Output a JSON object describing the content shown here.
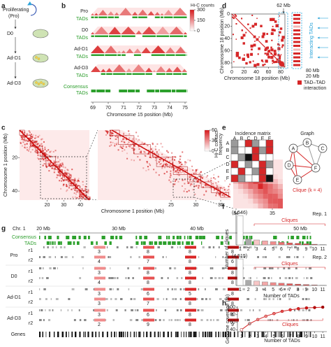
{
  "panel_labels": [
    "a",
    "b",
    "c",
    "d",
    "e",
    "f",
    "g",
    "h"
  ],
  "a": {
    "proliferating": [
      "Proliferating",
      "(Pro)"
    ],
    "stages": [
      "D0",
      "Ad-D1",
      "Ad-D3"
    ]
  },
  "b": {
    "tracks": [
      "Pro",
      "TADs",
      "D0",
      "TADs",
      "Ad-D1",
      "TADs",
      "Ad-D3",
      "TADs"
    ],
    "consensus": [
      "Consensus",
      "TADs"
    ],
    "colorbar_title": "Hi-C counts",
    "colorbar_ticks": [
      300,
      150,
      0
    ],
    "x_ticks": [
      69,
      70,
      71,
      72,
      73,
      74,
      75
    ],
    "x_label": "Chromosome 15 position (Mb)"
  },
  "c": {
    "y_label": "Chromosome 1 position (Mb)",
    "y_ticks": [
      20,
      40
    ],
    "x_ticks_left": [
      20,
      30,
      40
    ],
    "x_ticks_zoom": [
      25,
      30,
      35
    ],
    "x_ticks_inset": [
      34,
      35
    ],
    "x_label": "Chromosome 1 position (Mb)",
    "colorbar_title": [
      "Hi-C contact",
      "frequency"
    ],
    "colorbar_ticks": [
      60,
      30,
      0
    ]
  },
  "d": {
    "marker": "62 Mb",
    "ticks": [
      0,
      20,
      40,
      60,
      80
    ],
    "x_label": "Chromosome 18 position (Mb)",
    "y_label": "Chromosome 18 position (Mb)",
    "side_label": "Interacting TADs",
    "side_labels": [
      "80 Mb",
      "20 Mb"
    ],
    "legend": [
      "TAD–TAD",
      "interaction"
    ]
  },
  "e": {
    "matrix_title": "Incidence matrix",
    "graph_title": "Graph",
    "columns": [
      "A",
      "B",
      "C",
      "D",
      "E",
      "F"
    ],
    "rows": [
      "A",
      "B",
      "C",
      "D",
      "E",
      "F"
    ],
    "nodes": [
      "A",
      "B",
      "C",
      "D",
      "E",
      "F"
    ],
    "clique_label": "Clique (k = 4)"
  },
  "g": {
    "chromosome": "Chr. 1",
    "positions": [
      "20 Mb",
      "30 Mb",
      "40 Mb",
      "50 Mb"
    ],
    "consensus": [
      "Consensus",
      "TADs"
    ],
    "groups": [
      {
        "name": "Pro",
        "reps": [
          {
            "name": "r1",
            "cliques": [
              3,
              8,
              8,
              8
            ]
          },
          {
            "name": "r2",
            "cliques": [
              4,
              7,
              8,
              6
            ]
          }
        ]
      },
      {
        "name": "D0",
        "reps": [
          {
            "name": "r1",
            "cliques": [
              3,
              8,
              8,
              8
            ]
          },
          {
            "name": "r2",
            "cliques": [
              4,
              8,
              8,
              8
            ]
          }
        ]
      },
      {
        "name": "Ad-D1",
        "reps": [
          {
            "name": "r1",
            "cliques": [
              3,
              6,
              5,
              8
            ]
          },
          {
            "name": "r2",
            "cliques": [
              3,
              7,
              8,
              8
            ]
          }
        ]
      },
      {
        "name": "Ad-D3",
        "reps": [
          {
            "name": "r1",
            "cliques": [
              3,
              6,
              8,
              6
            ]
          },
          {
            "name": "r2",
            "cliques": [
              2,
              9,
              8,
              9
            ]
          }
        ]
      }
    ],
    "genes": "Genes"
  },
  "chart_data": [
    {
      "type": "bar",
      "title": "Rep. 1",
      "categories": [
        1,
        2,
        3,
        4,
        5,
        6,
        7,
        8,
        9,
        10,
        11
      ],
      "values": [
        4546,
        900,
        760,
        620,
        500,
        400,
        310,
        230,
        160,
        100,
        50
      ],
      "value_labels": [
        "(4,546)",
        null,
        null,
        null,
        null,
        null,
        null,
        null,
        null,
        null,
        null
      ],
      "colors": [
        "#ffffff",
        "#aaaaaa",
        "#f7c6c6",
        "#f4a9a9",
        "#f08c8c",
        "#ec6f6f",
        "#e85252",
        "#e33a3a",
        "#d92626",
        "#c81616",
        "#b30d0d"
      ],
      "ylim": [
        0,
        5000
      ],
      "annotation": "Cliques"
    },
    {
      "type": "bar",
      "title": "Rep. 2",
      "categories": [
        1,
        2,
        3,
        4,
        5,
        6,
        7,
        8,
        9,
        10,
        11
      ],
      "values": [
        4515,
        880,
        740,
        600,
        480,
        390,
        300,
        220,
        150,
        95,
        45
      ],
      "value_labels": [
        "(4,515)",
        null,
        null,
        null,
        null,
        null,
        null,
        null,
        null,
        null,
        null
      ],
      "colors": [
        "#ffffff",
        "#aaaaaa",
        "#f7c6c6",
        "#f4a9a9",
        "#f08c8c",
        "#ec6f6f",
        "#e85252",
        "#e33a3a",
        "#d92626",
        "#c81616",
        "#b30d0d"
      ],
      "ylim": [
        0,
        5000
      ],
      "annotation": "Cliques",
      "ylabel": "Number of cliques",
      "xlabel": "Number of TADs"
    },
    {
      "type": "line",
      "x": [
        1,
        2,
        3,
        4,
        5,
        6,
        7,
        8,
        9,
        10,
        11
      ],
      "values": [
        40,
        56,
        67,
        76,
        83,
        89,
        93,
        96,
        98,
        99,
        100
      ],
      "xlim": [
        0.5,
        11.5
      ],
      "xticks": [
        1,
        2,
        3,
        4,
        5,
        6,
        7,
        8,
        9,
        10,
        11
      ],
      "ylim": [
        35,
        102
      ],
      "yticks": [
        40,
        60,
        80,
        100
      ],
      "color": "#d62728",
      "marker_colors": [
        "#ffffff",
        "#aaaaaa",
        "#f4a9a9",
        "#f08c8c",
        "#ec6f6f",
        "#e85252",
        "#e33a3a",
        "#d92626",
        "#c81616",
        "#b30d0d",
        "#a00808"
      ],
      "xlabel": "Number of TADs",
      "ylabel": "Genome coverage (%)",
      "annotation": "Cliques"
    }
  ]
}
